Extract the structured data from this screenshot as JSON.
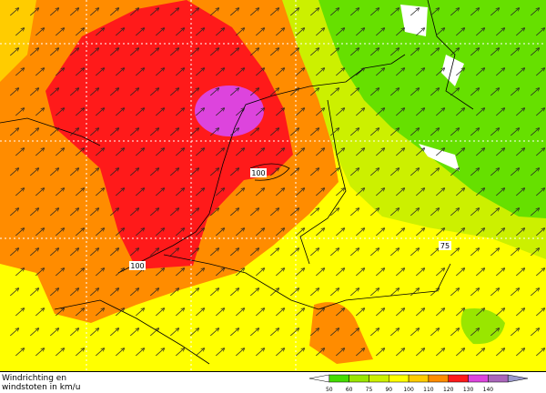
{
  "caption": {
    "line1": "Windrichting en",
    "line2": "windstoten in km/u"
  },
  "contour_labels": [
    100,
    100,
    75
  ],
  "legend": {
    "labels": [
      50,
      60,
      75,
      90,
      100,
      110,
      120,
      130,
      140
    ],
    "colors": [
      "#ffffff",
      "#44dd00",
      "#99e600",
      "#ccf000",
      "#ffff00",
      "#ffcc00",
      "#ff8c00",
      "#ff1a1a",
      "#dd44dd",
      "#aa66bb",
      "#9999cc"
    ]
  }
}
